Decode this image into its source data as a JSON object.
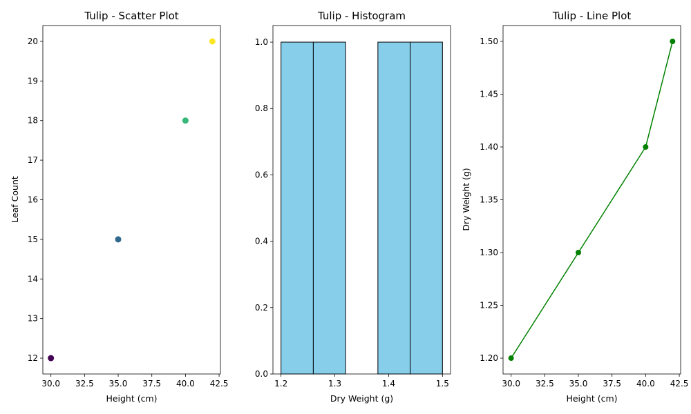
{
  "chart_data": [
    {
      "type": "scatter",
      "title": "Tulip - Scatter Plot",
      "xlabel": "Height (cm)",
      "ylabel": "Leaf Count",
      "xlim": [
        29.4,
        42.6
      ],
      "ylim": [
        11.6,
        20.4
      ],
      "xticks": [
        30,
        32.5,
        35,
        37.5,
        40,
        42.5
      ],
      "xtick_labels": [
        "30.0",
        "32.5",
        "35.0",
        "37.5",
        "40.0",
        "42.5"
      ],
      "yticks": [
        12,
        13,
        14,
        15,
        16,
        17,
        18,
        19,
        20
      ],
      "ytick_labels": [
        "12",
        "13",
        "14",
        "15",
        "16",
        "17",
        "18",
        "19",
        "20"
      ],
      "points": [
        {
          "x": 30,
          "y": 12,
          "color": "#440154"
        },
        {
          "x": 35,
          "y": 15,
          "color": "#31688e"
        },
        {
          "x": 40,
          "y": 18,
          "color": "#35b779"
        },
        {
          "x": 42,
          "y": 20,
          "color": "#fde725"
        }
      ],
      "grid": false
    },
    {
      "type": "bar",
      "subtype": "histogram",
      "title": "Tulip - Histogram",
      "xlabel": "Dry Weight (g)",
      "ylabel": "",
      "xlim": [
        1.185,
        1.515
      ],
      "ylim": [
        0,
        1.05
      ],
      "xticks": [
        1.2,
        1.3,
        1.4,
        1.5
      ],
      "xtick_labels": [
        "1.2",
        "1.3",
        "1.4",
        "1.5"
      ],
      "yticks": [
        0,
        0.2,
        0.4,
        0.6,
        0.8,
        1.0
      ],
      "ytick_labels": [
        "0.0",
        "0.2",
        "0.4",
        "0.6",
        "0.8",
        "1.0"
      ],
      "bins": [
        {
          "start": 1.2,
          "end": 1.26,
          "count": 1
        },
        {
          "start": 1.26,
          "end": 1.32,
          "count": 1
        },
        {
          "start": 1.32,
          "end": 1.38,
          "count": 0
        },
        {
          "start": 1.38,
          "end": 1.44,
          "count": 1
        },
        {
          "start": 1.44,
          "end": 1.5,
          "count": 1
        }
      ],
      "bar_color": "#87ceeb",
      "edge_color": "#000000",
      "grid": false
    },
    {
      "type": "line",
      "title": "Tulip - Line Plot",
      "xlabel": "Height (cm)",
      "ylabel": "Dry Weight (g)",
      "xlim": [
        29.4,
        42.6
      ],
      "ylim": [
        1.185,
        1.515
      ],
      "xticks": [
        30,
        32.5,
        35,
        37.5,
        40,
        42.5
      ],
      "xtick_labels": [
        "30.0",
        "32.5",
        "35.0",
        "37.5",
        "40.0",
        "42.5"
      ],
      "yticks": [
        1.2,
        1.25,
        1.3,
        1.35,
        1.4,
        1.45,
        1.5
      ],
      "ytick_labels": [
        "1.20",
        "1.25",
        "1.30",
        "1.35",
        "1.40",
        "1.45",
        "1.50"
      ],
      "x": [
        30,
        35,
        40,
        42
      ],
      "y": [
        1.2,
        1.3,
        1.4,
        1.5
      ],
      "color": "#008000",
      "marker": "circle",
      "grid": false
    }
  ]
}
